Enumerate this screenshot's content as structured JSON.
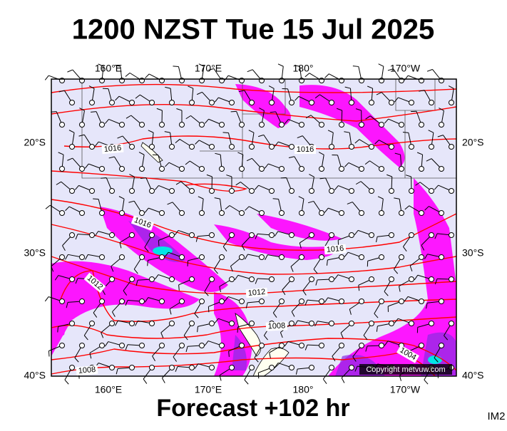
{
  "title": "1200 NZST Tue 15 Jul 2025",
  "top_axis_labels": [
    "160°E",
    "170°E",
    "180°",
    "170°W"
  ],
  "bottom_axis_labels": [
    "160°E",
    "170°E",
    "180°",
    "170°W"
  ],
  "left_axis_labels": [
    "20°S",
    "30°S",
    "40°S"
  ],
  "right_axis_labels": [
    "20°S",
    "30°S",
    "40°S"
  ],
  "isobar_labels": [
    "1016",
    "1016",
    "1016",
    "1016",
    "1012",
    "1012",
    "1008",
    "1008",
    "1004"
  ],
  "copyright": "Copyright metvuw.com",
  "forecast": "Forecast +102 hr",
  "corner_code": "IM2"
}
